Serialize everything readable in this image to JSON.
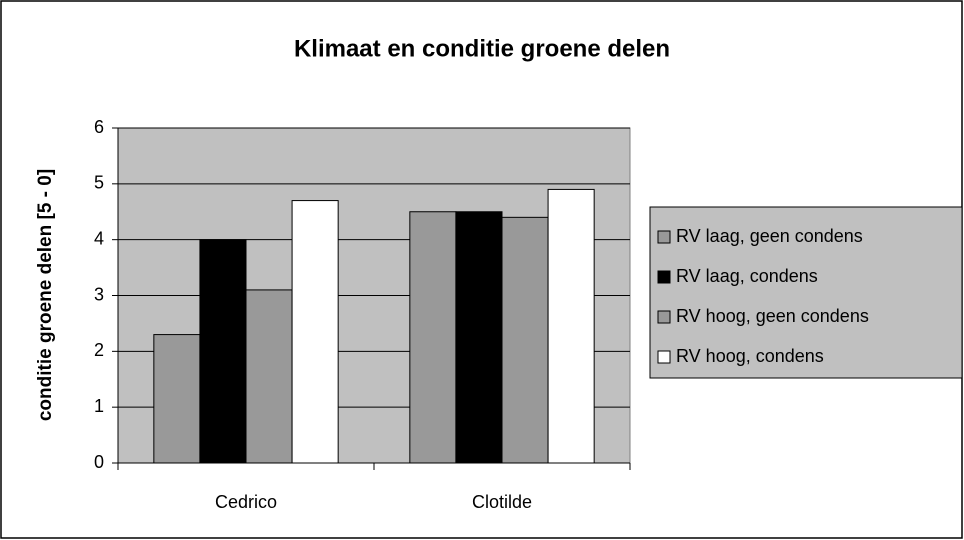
{
  "chart_data": {
    "type": "bar",
    "title": "Klimaat en conditie groene delen",
    "y_label": "conditie groene delen [5 - 0]",
    "categories": [
      "Cedrico",
      "Clotilde"
    ],
    "series": [
      {
        "name": "RV laag, geen condens",
        "color": "#999999",
        "values": [
          2.3,
          4.5
        ]
      },
      {
        "name": "RV laag, condens",
        "color": "#000000",
        "values": [
          4.0,
          4.5
        ]
      },
      {
        "name": "RV hoog, geen condens",
        "color": "#999999",
        "values": [
          3.1,
          4.4
        ]
      },
      {
        "name": "RV hoog, condens",
        "color": "#ffffff",
        "values": [
          4.7,
          4.9
        ]
      }
    ],
    "ylim": [
      0,
      6
    ],
    "yticks": [
      0,
      1,
      2,
      3,
      4,
      5,
      6
    ],
    "grid": true,
    "legend": "right",
    "plot_background": "#c0c0c0"
  }
}
